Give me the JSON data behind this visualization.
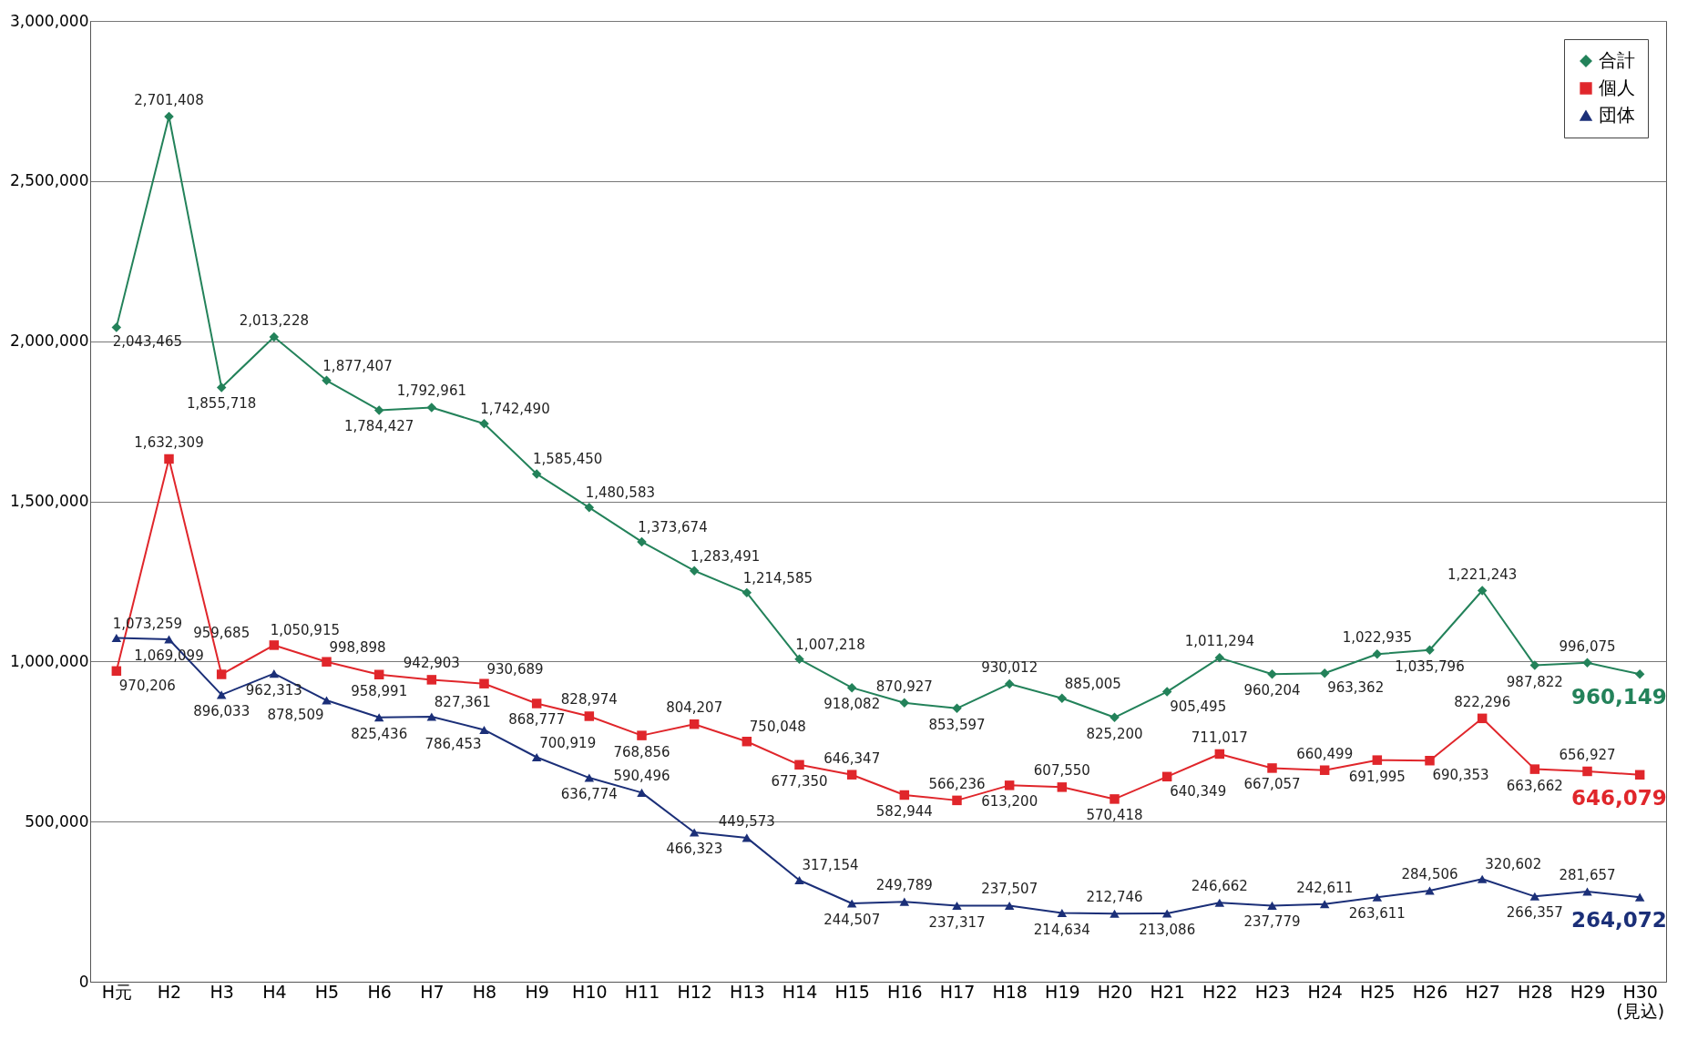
{
  "chart_data": {
    "type": "line",
    "categories": [
      "H元",
      "H2",
      "H3",
      "H4",
      "H5",
      "H6",
      "H7",
      "H8",
      "H9",
      "H10",
      "H11",
      "H12",
      "H13",
      "H14",
      "H15",
      "H16",
      "H17",
      "H18",
      "H19",
      "H20",
      "H21",
      "H22",
      "H23",
      "H24",
      "H25",
      "H26",
      "H27",
      "H28",
      "H29",
      "H30\n(見込)"
    ],
    "series": [
      {
        "name": "合計",
        "color": "#23825a",
        "marker": "diamond",
        "values": [
          2043465,
          2701408,
          1855718,
          2013228,
          1877407,
          1784427,
          1792961,
          1742490,
          1585450,
          1480583,
          1373674,
          1283491,
          1214585,
          1007218,
          918082,
          870927,
          853597,
          930012,
          885005,
          825200,
          905495,
          1011294,
          960204,
          963362,
          1022935,
          1035796,
          1221243,
          987822,
          996075,
          960149
        ],
        "value_labels": [
          "2,043,465",
          "2,701,408",
          "1,855,718",
          "2,013,228",
          "1,877,407",
          "1,784,427",
          "1,792,961",
          "1,742,490",
          "1,585,450",
          "1,480,583",
          "1,373,674",
          "1,283,491",
          "1,214,585",
          "1,007,218",
          "918,082",
          "870,927",
          "853,597",
          "930,012",
          "885,005",
          "825,200",
          "905,495",
          "1,011,294",
          "960,204",
          "963,362",
          "1,022,935",
          "1,035,796",
          "1,221,243",
          "987,822",
          "996,075",
          "960,149"
        ]
      },
      {
        "name": "個人",
        "color": "#e0262b",
        "marker": "square",
        "values": [
          970206,
          1632309,
          959685,
          1050915,
          998898,
          958991,
          942903,
          930689,
          868777,
          828974,
          768856,
          804207,
          750048,
          677350,
          646347,
          582944,
          566236,
          613200,
          607550,
          570418,
          640349,
          711017,
          667057,
          660499,
          691995,
          690353,
          822296,
          663662,
          656927,
          646079
        ],
        "value_labels": [
          "970,206",
          "1,632,309",
          "959,685",
          "1,050,915",
          "998,898",
          "958,991",
          "942,903",
          "930,689",
          "868,777",
          "828,974",
          "768,856",
          "804,207",
          "750,048",
          "677,350",
          "646,347",
          "582,944",
          "566,236",
          "613,200",
          "607,550",
          "570,418",
          "640,349",
          "711,017",
          "667,057",
          "660,499",
          "691,995",
          "690,353",
          "822,296",
          "663,662",
          "656,927",
          "646,079"
        ]
      },
      {
        "name": "団体",
        "color": "#1b2f78",
        "marker": "triangle",
        "values": [
          1073259,
          1069099,
          896033,
          962313,
          878509,
          825436,
          827361,
          786453,
          700919,
          636774,
          590496,
          466323,
          449573,
          317154,
          244507,
          249789,
          237317,
          237507,
          214634,
          212746,
          213086,
          246662,
          237779,
          242611,
          263611,
          284506,
          320602,
          266357,
          281657,
          264072
        ],
        "value_labels": [
          "1,073,259",
          "1,069,099",
          "896,033",
          "962,313",
          "878,509",
          "825,436",
          "827,361",
          "786,453",
          "700,919",
          "636,774",
          "590,496",
          "466,323",
          "449,573",
          "317,154",
          "244,507",
          "249,789",
          "237,317",
          "237,507",
          "214,634",
          "212,746",
          "213,086",
          "246,662",
          "237,779",
          "242,611",
          "263,611",
          "284,506",
          "320,602",
          "266,357",
          "281,657",
          "264,072"
        ]
      }
    ],
    "ylim": [
      0,
      3000000
    ],
    "yticks": [
      0,
      {
        "value": 500000,
        "label": "500,000"
      },
      {
        "value": 1000000,
        "label": "1,000,000"
      },
      {
        "value": 1500000,
        "label": "1,500,000"
      },
      {
        "value": 2000000,
        "label": "2,000,000"
      },
      {
        "value": 2500000,
        "label": "2,500,000"
      },
      {
        "value": 3000000,
        "label": "3,000,000"
      }
    ],
    "grid": "y",
    "legend": "top right"
  }
}
